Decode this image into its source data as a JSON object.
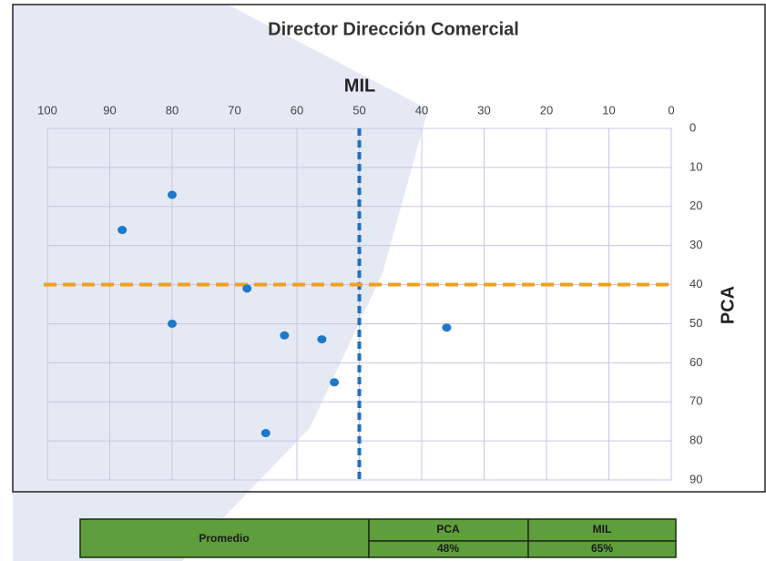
{
  "chart_data": {
    "type": "scatter",
    "title": "Director Dirección Comercial",
    "x_label": "MIL",
    "y_label": "PCA",
    "x": [
      80,
      88,
      68,
      80,
      62,
      56,
      54,
      65,
      36
    ],
    "series": [
      {
        "color": "#1f78c8",
        "values": [
          17,
          26,
          41,
          50,
          53,
          54,
          65,
          78,
          51
        ]
      }
    ],
    "xlim": [
      0,
      100
    ],
    "xticks": [
      0,
      10,
      20,
      30,
      40,
      50,
      60,
      70,
      80,
      90,
      100
    ],
    "x_reversed": true,
    "x_axis_position": "top",
    "ylim": [
      0,
      90
    ],
    "yticks": [
      0,
      10,
      20,
      30,
      40,
      50,
      60,
      70,
      80,
      90
    ],
    "y_reversed": true,
    "y_axis_position": "right",
    "grid": true,
    "reference_lines": [
      {
        "axis": "x",
        "value": 50,
        "color": "#1f6fc0"
      },
      {
        "axis": "y",
        "value": 40,
        "color": "#f0a020"
      }
    ]
  },
  "table": {
    "row_header": "Promedio",
    "columns": [
      "PCA",
      "MIL"
    ],
    "values": [
      "48%",
      "65%"
    ]
  }
}
